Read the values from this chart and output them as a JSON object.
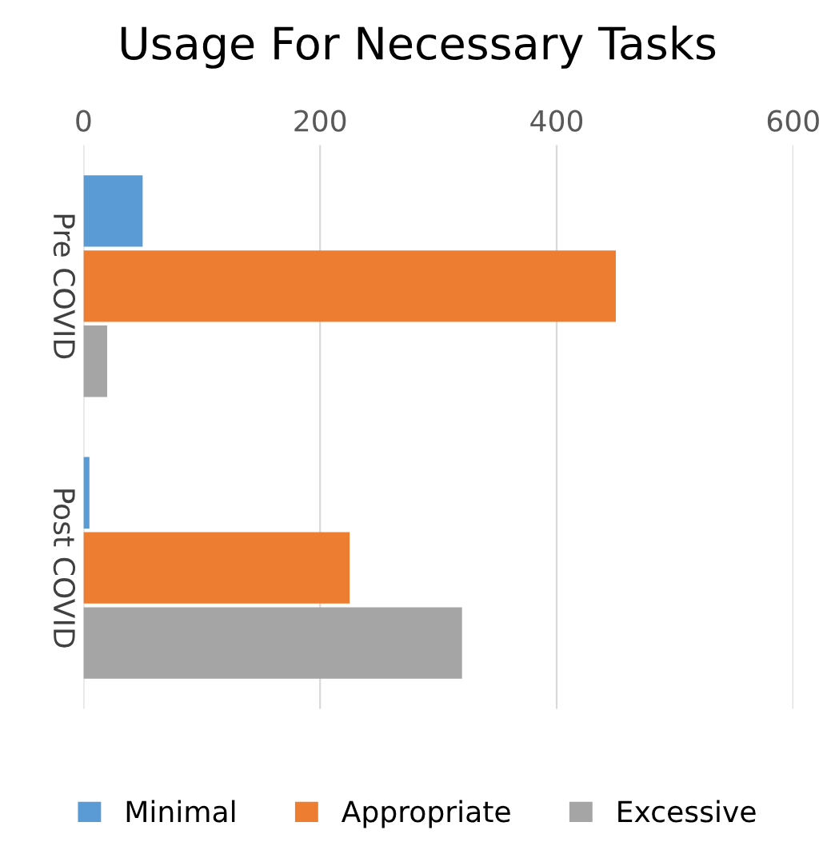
{
  "chart_data": {
    "type": "bar",
    "orientation": "horizontal",
    "title": "Usage For Necessary Tasks",
    "categories": [
      "Pre COVID",
      "Post COVID"
    ],
    "series": [
      {
        "name": "Minimal",
        "color": "#5b9bd5",
        "values": [
          50,
          5
        ]
      },
      {
        "name": "Appropriate",
        "color": "#ed7d31",
        "values": [
          450,
          225
        ]
      },
      {
        "name": "Excessive",
        "color": "#a5a5a5",
        "values": [
          20,
          320
        ]
      }
    ],
    "xlim": [
      0,
      600
    ],
    "xticks": [
      0,
      200,
      400,
      600
    ],
    "grid": "x",
    "legend": "bottom"
  }
}
